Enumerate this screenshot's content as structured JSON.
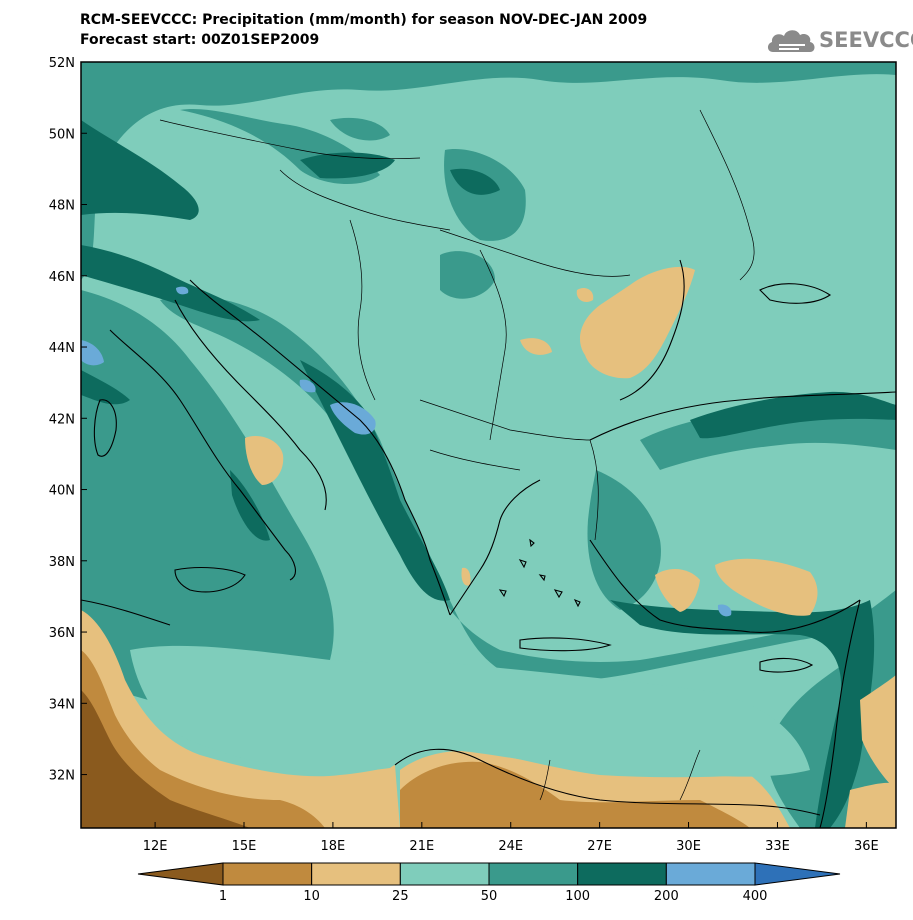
{
  "header": {
    "line1": "RCM-SEEVCCC: Precipitation (mm/month) for season NOV-DEC-JAN 2009",
    "line2": "Forecast start: 00Z01SEP2009"
  },
  "logo": {
    "text": "SEEVCCC",
    "icon": "cloud-icon"
  },
  "map": {
    "lat_labels": [
      "52N",
      "50N",
      "48N",
      "46N",
      "44N",
      "42N",
      "40N",
      "38N",
      "36N",
      "34N",
      "32N"
    ],
    "lon_labels": [
      "12E",
      "15E",
      "18E",
      "21E",
      "24E",
      "27E",
      "30E",
      "33E",
      "36E"
    ],
    "lat_range": [
      30.5,
      52
    ],
    "lon_range": [
      9.5,
      37
    ]
  },
  "colorbar": {
    "labels": [
      "1",
      "10",
      "25",
      "50",
      "100",
      "200",
      "400"
    ],
    "colors": [
      "#8a5a1e",
      "#c08a3e",
      "#e6c07e",
      "#7fcdbb",
      "#3a9a8c",
      "#0d6b5e",
      "#6aaad8",
      "#2e71b8"
    ]
  }
}
